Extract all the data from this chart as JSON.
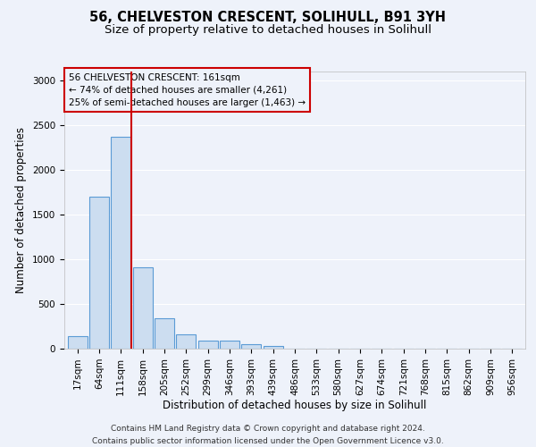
{
  "title_line1": "56, CHELVESTON CRESCENT, SOLIHULL, B91 3YH",
  "title_line2": "Size of property relative to detached houses in Solihull",
  "xlabel": "Distribution of detached houses by size in Solihull",
  "ylabel": "Number of detached properties",
  "categories": [
    "17sqm",
    "64sqm",
    "111sqm",
    "158sqm",
    "205sqm",
    "252sqm",
    "299sqm",
    "346sqm",
    "393sqm",
    "439sqm",
    "486sqm",
    "533sqm",
    "580sqm",
    "627sqm",
    "674sqm",
    "721sqm",
    "768sqm",
    "815sqm",
    "862sqm",
    "909sqm",
    "956sqm"
  ],
  "values": [
    140,
    1700,
    2370,
    910,
    340,
    160,
    90,
    90,
    50,
    35,
    5,
    5,
    0,
    0,
    0,
    0,
    0,
    0,
    0,
    0,
    0
  ],
  "bar_color": "#ccddf0",
  "bar_edge_color": "#5b9bd5",
  "highlight_color": "#cc0000",
  "highlight_line_bin": 2.5,
  "annotation_text": "56 CHELVESTON CRESCENT: 161sqm\n← 74% of detached houses are smaller (4,261)\n25% of semi-detached houses are larger (1,463) →",
  "annotation_box_color": "#cc0000",
  "ylim": [
    0,
    3100
  ],
  "yticks": [
    0,
    500,
    1000,
    1500,
    2000,
    2500,
    3000
  ],
  "footer_line1": "Contains HM Land Registry data © Crown copyright and database right 2024.",
  "footer_line2": "Contains public sector information licensed under the Open Government Licence v3.0.",
  "background_color": "#eef2fa",
  "grid_color": "#ffffff",
  "title_fontsize": 10.5,
  "subtitle_fontsize": 9.5,
  "axis_label_fontsize": 8.5,
  "tick_fontsize": 7.5,
  "annotation_fontsize": 7.5,
  "footer_fontsize": 6.5
}
